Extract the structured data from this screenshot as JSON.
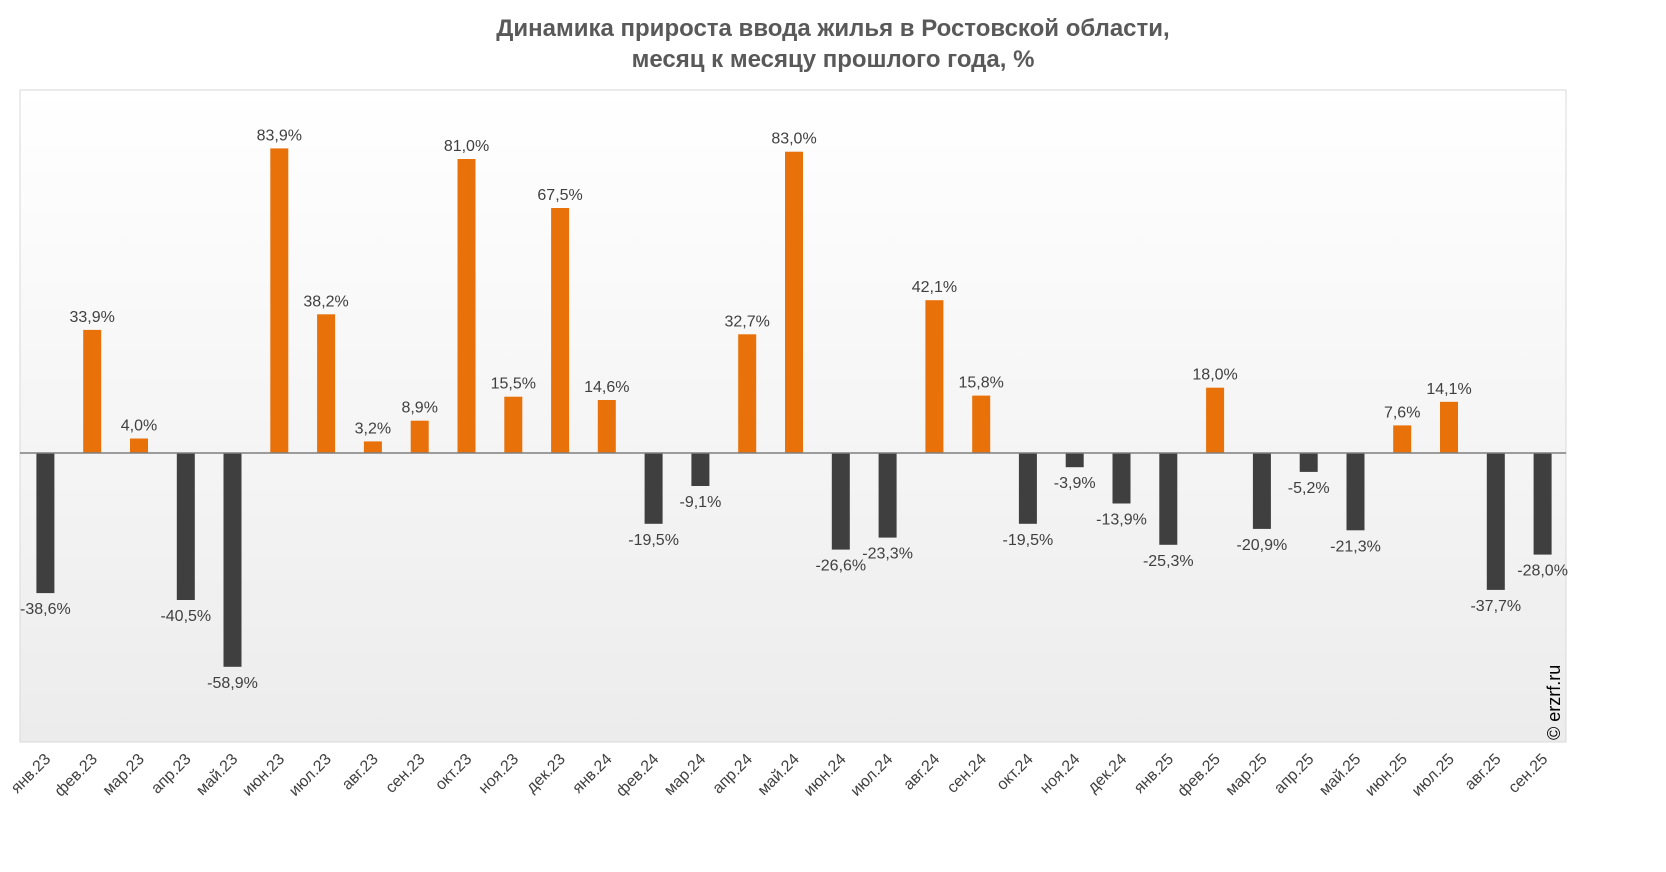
{
  "chart_data": {
    "type": "bar",
    "title": [
      "Динамика прироста ввода жилья в Ростовской области,",
      "месяц к месяцу прошлого года, %"
    ],
    "categories": [
      "янв.23",
      "фев.23",
      "мар.23",
      "апр.23",
      "май.23",
      "июн.23",
      "июл.23",
      "авг.23",
      "сен.23",
      "окт.23",
      "ноя.23",
      "дек.23",
      "янв.24",
      "фев.24",
      "мар.24",
      "апр.24",
      "май.24",
      "июн.24",
      "июл.24",
      "авг.24",
      "сен.24",
      "окт.24",
      "ноя.24",
      "дек.24",
      "янв.25",
      "фев.25",
      "мар.25",
      "апр.25",
      "май.25",
      "июн.25",
      "июл.25",
      "авг.25",
      "сен.25"
    ],
    "values": [
      -38.6,
      33.9,
      4.0,
      -40.5,
      -58.9,
      83.9,
      38.2,
      3.2,
      8.9,
      81.0,
      15.5,
      67.5,
      14.6,
      -19.5,
      -9.1,
      32.7,
      83.0,
      -26.6,
      -23.3,
      42.1,
      15.8,
      -19.5,
      -3.9,
      -13.9,
      -25.3,
      18.0,
      -20.9,
      -5.2,
      -21.3,
      7.6,
      14.1,
      -37.7,
      -28.0
    ],
    "labels": [
      "-38,6%",
      "33,9%",
      "4,0%",
      "-40,5%",
      "-58,9%",
      "83,9%",
      "38,2%",
      "3,2%",
      "8,9%",
      "81,0%",
      "15,5%",
      "67,5%",
      "14,6%",
      "-19,5%",
      "-9,1%",
      "32,7%",
      "83,0%",
      "-26,6%",
      "-23,3%",
      "42,1%",
      "15,8%",
      "-19,5%",
      "-3,9%",
      "-13,9%",
      "-25,3%",
      "18,0%",
      "-20,9%",
      "-5,2%",
      "-21,3%",
      "7,6%",
      "14,1%",
      "-37,7%",
      "-28,0%"
    ],
    "ylim": [
      -80,
      100
    ],
    "grid": false,
    "legend": "none",
    "colors": {
      "positive": "#E8710A",
      "negative": "#3F3F3F"
    }
  },
  "copyright": "© erzrf.ru"
}
